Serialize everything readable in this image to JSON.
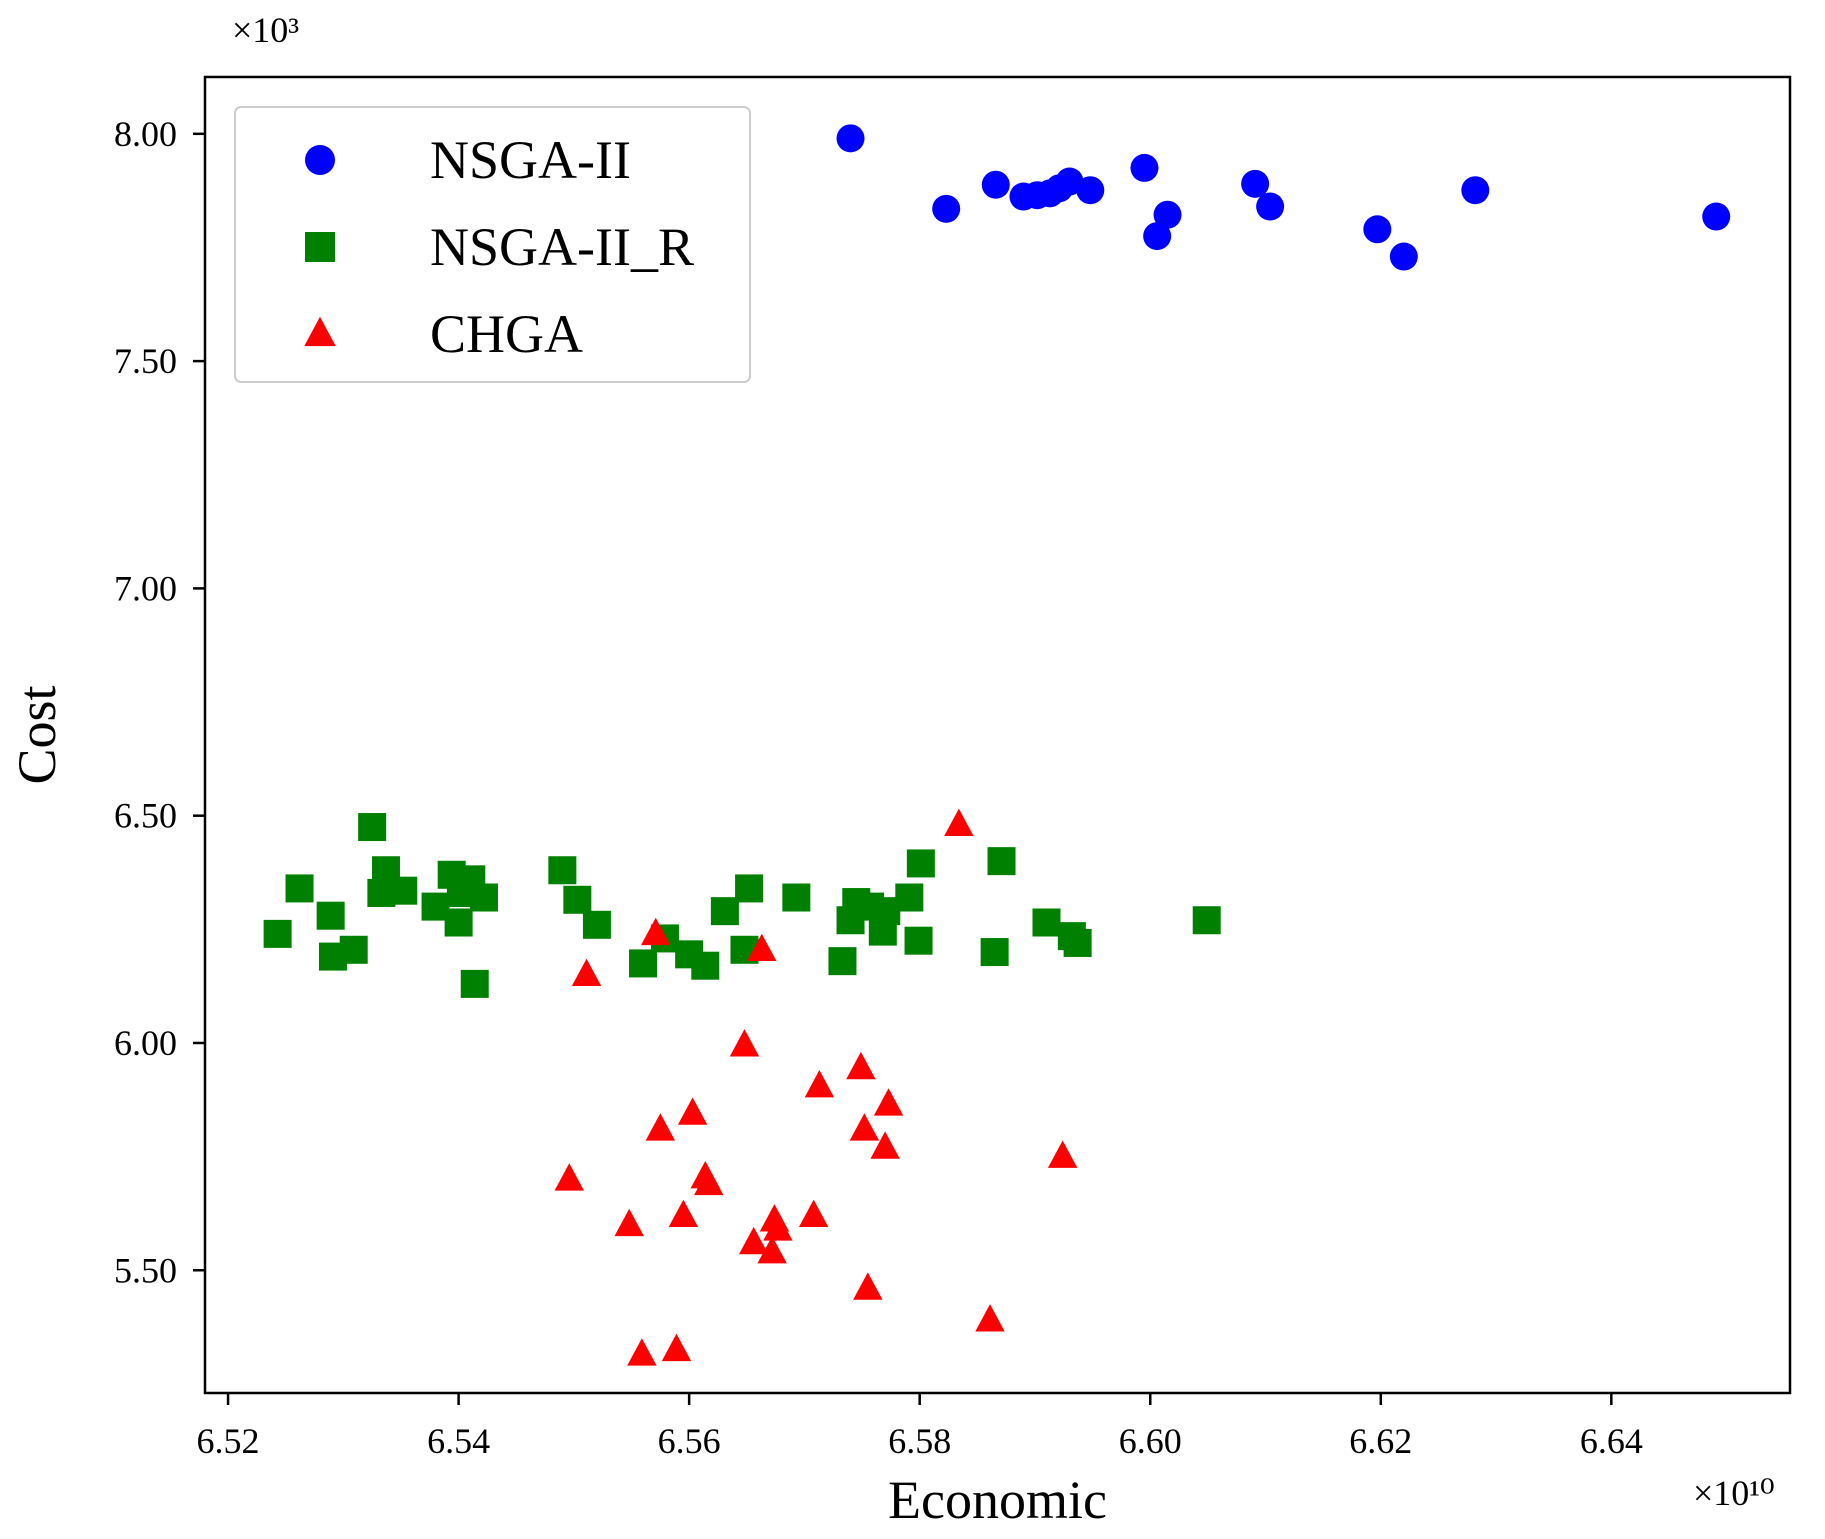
{
  "chart_data": {
    "type": "scatter",
    "title": "",
    "xlabel": "Economic",
    "ylabel": "Cost",
    "x_multiplier": "×10¹⁰",
    "y_multiplier": "×10³",
    "xlim": [
      6.518,
      6.6555
    ],
    "ylim": [
      5.23,
      8.125
    ],
    "xticks": [
      6.52,
      6.54,
      6.56,
      6.58,
      6.6,
      6.62,
      6.64
    ],
    "xtick_labels": [
      "6.52",
      "6.54",
      "6.56",
      "6.58",
      "6.60",
      "6.62",
      "6.64"
    ],
    "yticks": [
      5.5,
      6.0,
      6.5,
      7.0,
      7.5,
      8.0
    ],
    "ytick_labels": [
      "5.50",
      "6.00",
      "6.50",
      "7.00",
      "7.50",
      "8.00"
    ],
    "grid": false,
    "legend_position": "top-left",
    "series": [
      {
        "name": "NSGA-II",
        "marker": "circle",
        "color": "#0000ff",
        "points": [
          [
            6.574,
            7.99
          ],
          [
            6.5823,
            7.835
          ],
          [
            6.5866,
            7.888
          ],
          [
            6.589,
            7.862
          ],
          [
            6.5902,
            7.865
          ],
          [
            6.5913,
            7.869
          ],
          [
            6.5921,
            7.88
          ],
          [
            6.593,
            7.895
          ],
          [
            6.5948,
            7.876
          ],
          [
            6.5995,
            7.925
          ],
          [
            6.6006,
            7.775
          ],
          [
            6.6015,
            7.822
          ],
          [
            6.6091,
            7.89
          ],
          [
            6.6104,
            7.84
          ],
          [
            6.6197,
            7.79
          ],
          [
            6.622,
            7.73
          ],
          [
            6.6282,
            7.876
          ],
          [
            6.6491,
            7.818
          ]
        ]
      },
      {
        "name": "NSGA-II_R",
        "marker": "square",
        "color": "#008000",
        "points": [
          [
            6.5243,
            6.24
          ],
          [
            6.5262,
            6.34
          ],
          [
            6.5289,
            6.28
          ],
          [
            6.5291,
            6.19
          ],
          [
            6.5309,
            6.205
          ],
          [
            6.5325,
            6.475
          ],
          [
            6.5333,
            6.33
          ],
          [
            6.5337,
            6.38
          ],
          [
            6.5352,
            6.335
          ],
          [
            6.538,
            6.3
          ],
          [
            6.5394,
            6.37
          ],
          [
            6.54,
            6.265
          ],
          [
            6.5402,
            6.33
          ],
          [
            6.5411,
            6.36
          ],
          [
            6.5414,
            6.13
          ],
          [
            6.5422,
            6.32
          ],
          [
            6.549,
            6.38
          ],
          [
            6.5503,
            6.315
          ],
          [
            6.552,
            6.26
          ],
          [
            6.556,
            6.175
          ],
          [
            6.5579,
            6.23
          ],
          [
            6.56,
            6.195
          ],
          [
            6.5614,
            6.17
          ],
          [
            6.5631,
            6.29
          ],
          [
            6.5648,
            6.205
          ],
          [
            6.5652,
            6.34
          ],
          [
            6.5693,
            6.32
          ],
          [
            6.5733,
            6.18
          ],
          [
            6.574,
            6.27
          ],
          [
            6.5745,
            6.31
          ],
          [
            6.5757,
            6.3
          ],
          [
            6.5768,
            6.245
          ],
          [
            6.5771,
            6.29
          ],
          [
            6.5791,
            6.32
          ],
          [
            6.5799,
            6.225
          ],
          [
            6.5801,
            6.395
          ],
          [
            6.5865,
            6.2
          ],
          [
            6.5871,
            6.4
          ],
          [
            6.591,
            6.265
          ],
          [
            6.5932,
            6.235
          ],
          [
            6.5937,
            6.22
          ],
          [
            6.6049,
            6.27
          ]
        ]
      },
      {
        "name": "CHGA",
        "marker": "triangle",
        "color": "#ff0000",
        "points": [
          [
            6.5496,
            5.7
          ],
          [
            6.5511,
            6.15
          ],
          [
            6.5548,
            5.6
          ],
          [
            6.5559,
            5.315
          ],
          [
            6.5571,
            6.24
          ],
          [
            6.5575,
            5.81
          ],
          [
            6.5589,
            5.325
          ],
          [
            6.5595,
            5.62
          ],
          [
            6.5603,
            5.845
          ],
          [
            6.5614,
            5.705
          ],
          [
            6.5617,
            5.69
          ],
          [
            6.5648,
            5.995
          ],
          [
            6.5656,
            5.56
          ],
          [
            6.5663,
            6.205
          ],
          [
            6.5672,
            5.54
          ],
          [
            6.5674,
            5.61
          ],
          [
            6.5677,
            5.59
          ],
          [
            6.5708,
            5.62
          ],
          [
            6.5713,
            5.905
          ],
          [
            6.5749,
            5.945
          ],
          [
            6.5752,
            5.81
          ],
          [
            6.5755,
            5.46
          ],
          [
            6.577,
            5.77
          ],
          [
            6.5773,
            5.865
          ],
          [
            6.5834,
            6.48
          ],
          [
            6.5861,
            5.39
          ],
          [
            6.5924,
            5.75
          ]
        ]
      }
    ]
  }
}
